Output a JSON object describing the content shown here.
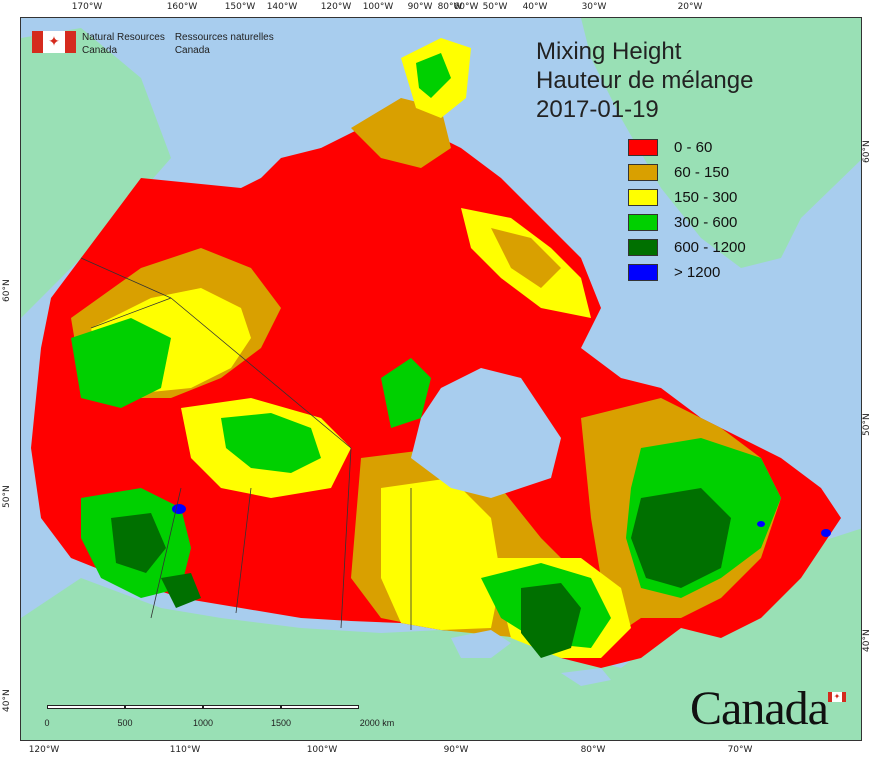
{
  "title": {
    "line1": "Mixing Height",
    "line2": "Hauteur de mélange",
    "date": "2017-01-19"
  },
  "department": {
    "en_line1": "Natural Resources",
    "en_line2": "Canada",
    "fr_line1": "Ressources naturelles",
    "fr_line2": "Canada"
  },
  "wordmark": "Canada",
  "legend": [
    {
      "label": "0 - 60",
      "color": "#ff0000"
    },
    {
      "label": "60 - 150",
      "color": "#d9a000"
    },
    {
      "label": "150 - 300",
      "color": "#ffff00"
    },
    {
      "label": "300 - 600",
      "color": "#00d000"
    },
    {
      "label": "600 - 1200",
      "color": "#007000"
    },
    {
      "label": "> 1200",
      "color": "#0000ff"
    }
  ],
  "scale": {
    "labels": [
      "0",
      "500",
      "1000",
      "1500",
      "2000 km"
    ]
  },
  "graticule": {
    "top_lon": [
      "170°W",
      "160°W",
      "150°W",
      "140°W",
      "120°W",
      "100°W",
      "90°W",
      "80°W",
      "60°W",
      "50°W",
      "40°W",
      "30°W",
      "20°W"
    ],
    "bottom_lon": [
      "120°W",
      "110°W",
      "100°W",
      "90°W",
      "80°W",
      "70°W"
    ],
    "left_lat": [
      "60°N",
      "50°N",
      "40°N"
    ],
    "right_lat": [
      "60°N",
      "50°N",
      "40°N"
    ]
  },
  "colors": {
    "water": "#a8cdee",
    "land_outside": "#99e0b5",
    "very_low": "#ff0000",
    "low": "#d9a000",
    "mid": "#ffff00",
    "high": "#00d000",
    "very_high": "#007000",
    "extreme": "#0000ff"
  }
}
